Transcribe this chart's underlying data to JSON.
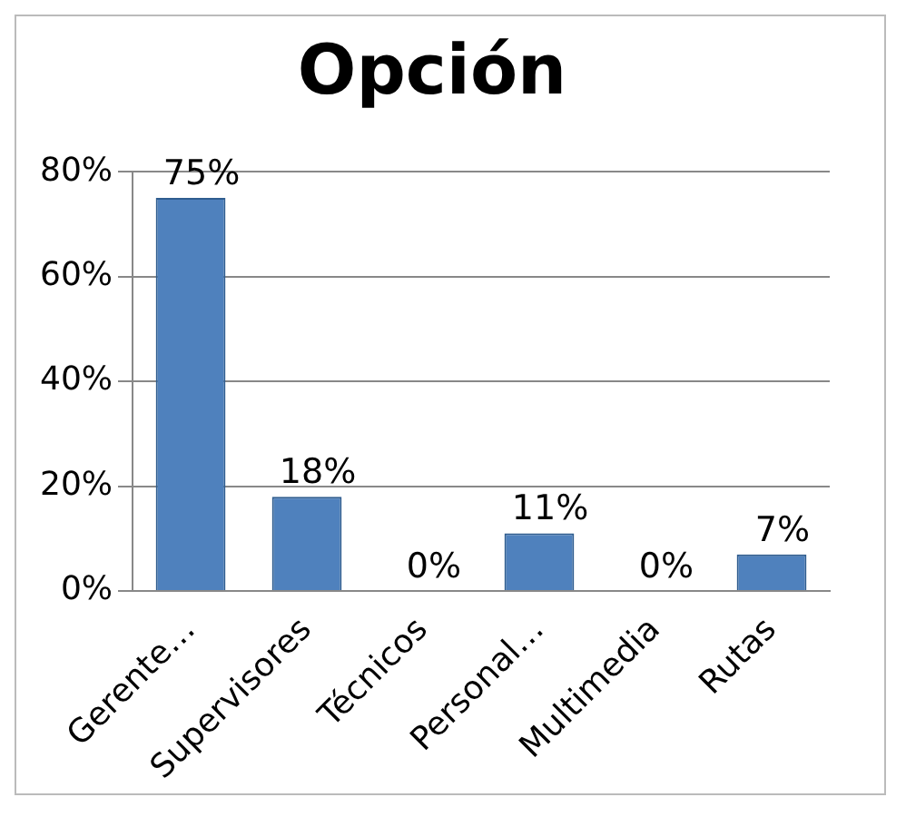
{
  "chart_data": {
    "type": "bar",
    "title": "Opción",
    "categories": [
      "Gerente…",
      "Supervisores",
      "Técnicos",
      "Personal…",
      "Multimedia",
      "Rutas"
    ],
    "values": [
      75,
      18,
      0,
      11,
      0,
      7
    ],
    "value_labels": [
      "75%",
      "18%",
      "0%",
      "11%",
      "0%",
      "7%"
    ],
    "color": "#4f81bd",
    "ylim": [
      0,
      80
    ],
    "yticks": [
      {
        "value": 0,
        "label": "0%"
      },
      {
        "value": 20,
        "label": "20%"
      },
      {
        "value": 40,
        "label": "40%"
      },
      {
        "value": 60,
        "label": "60%"
      },
      {
        "value": 80,
        "label": "80%"
      }
    ],
    "grid": "y",
    "legend": false
  }
}
